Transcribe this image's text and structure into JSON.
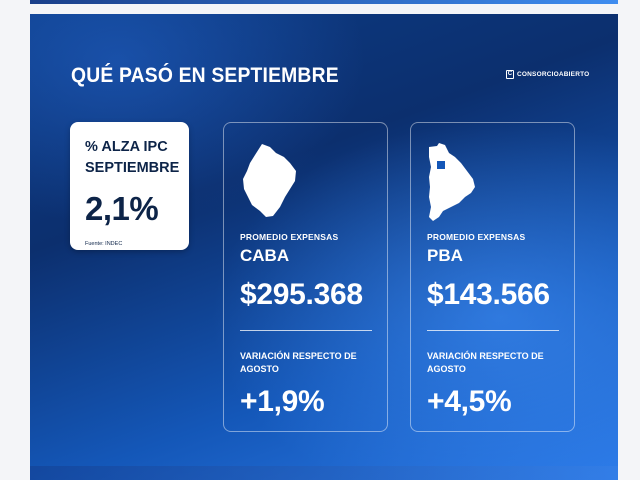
{
  "header": {
    "title": "QUÉ PASÓ EN SEPTIEMBRE",
    "brand": "CONSORCIOABIERTO",
    "brand_icon": "building-logo-icon"
  },
  "ipc": {
    "label": "% ALZA IPC SEPTIEMBRE",
    "value": "2,1%",
    "source": "Fuente: INDEC"
  },
  "regions": [
    {
      "icon": "caba-map-icon",
      "label": "PROMEDIO EXPENSAS",
      "region": "CABA",
      "amount": "$295.368",
      "variation_label": "VARIACIÓN RESPECTO DE AGOSTO",
      "variation_value": "+1,9%"
    },
    {
      "icon": "pba-map-icon",
      "label": "PROMEDIO EXPENSAS",
      "region": "PBA",
      "amount": "$143.566",
      "variation_label": "VARIACIÓN RESPECTO DE AGOSTO",
      "variation_value": "+4,5%"
    }
  ],
  "colors": {
    "background_dark": "#0c2f6e",
    "background_light": "#2b7ae8",
    "text_dark": "#0d2448",
    "text_light": "#ffffff"
  }
}
